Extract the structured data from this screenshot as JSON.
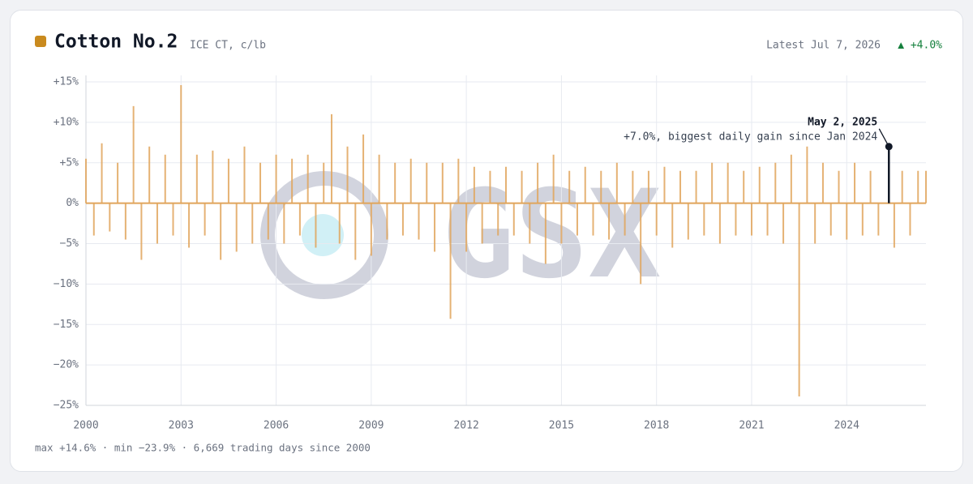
{
  "chart_data": {
    "type": "spike",
    "title": "Cotton No.2",
    "subtitle": "ICE CT, c/lb",
    "latest": "Latest Jul 7, 2026",
    "latest_change": "▲ +4.0%",
    "footer": "max +14.6% · min −23.9% · 6,669 trading days since 2000",
    "watermark": "GSX",
    "color": "#e0a55c",
    "title_marker_color": "#c98a1e",
    "x": [
      2000,
      2000.25,
      2000.5,
      2000.75,
      2001,
      2001.25,
      2001.5,
      2001.75,
      2002,
      2002.25,
      2002.5,
      2002.75,
      2003,
      2003.25,
      2003.5,
      2003.75,
      2004,
      2004.25,
      2004.5,
      2004.75,
      2005,
      2005.25,
      2005.5,
      2005.75,
      2006,
      2006.25,
      2006.5,
      2006.75,
      2007,
      2007.25,
      2007.5,
      2007.75,
      2008,
      2008.25,
      2008.5,
      2008.75,
      2009,
      2009.25,
      2009.5,
      2009.75,
      2010,
      2010.25,
      2010.5,
      2010.75,
      2011,
      2011.25,
      2011.5,
      2011.75,
      2012,
      2012.25,
      2012.5,
      2012.75,
      2013,
      2013.25,
      2013.5,
      2013.75,
      2014,
      2014.25,
      2014.5,
      2014.75,
      2015,
      2015.25,
      2015.5,
      2015.75,
      2016,
      2016.25,
      2016.5,
      2016.75,
      2017,
      2017.25,
      2017.5,
      2017.75,
      2018,
      2018.25,
      2018.5,
      2018.75,
      2019,
      2019.25,
      2019.5,
      2019.75,
      2020,
      2020.25,
      2020.5,
      2020.75,
      2021,
      2021.25,
      2021.5,
      2021.75,
      2022,
      2022.25,
      2022.5,
      2022.75,
      2023,
      2023.25,
      2023.5,
      2023.75,
      2024,
      2024.25,
      2024.5,
      2024.75,
      2025,
      2025.33,
      2025.5,
      2025.75,
      2026,
      2026.25,
      2026.5
    ],
    "values": [
      5.5,
      -4,
      7.4,
      -3.5,
      5,
      -4.5,
      12,
      -7,
      7,
      -5,
      6,
      -4,
      14.6,
      -5.5,
      6,
      -4,
      6.5,
      -7,
      5.5,
      -6,
      7,
      -5,
      5,
      -4.5,
      6,
      -5,
      5.5,
      -4,
      6,
      -5.5,
      5,
      11,
      -5,
      7,
      -7,
      8.5,
      -6.5,
      6,
      -4.5,
      5,
      -4,
      5.5,
      -4.5,
      5,
      -6,
      5,
      -14.3,
      5.5,
      -6,
      4.5,
      -5,
      4,
      -4,
      4.5,
      -4,
      4,
      -5,
      5,
      -7.5,
      6,
      -5,
      4,
      -4,
      4.5,
      -4,
      4,
      -4.5,
      5,
      -4,
      4,
      -10,
      4,
      -4,
      4.5,
      -5.5,
      4,
      -4.5,
      4,
      -4,
      5,
      -5,
      5,
      -4,
      4,
      -4,
      4.5,
      -4,
      5,
      -5,
      6,
      -23.9,
      7,
      -5,
      5,
      -4,
      4,
      -4.5,
      5,
      -4,
      4,
      -4,
      7.0,
      -5.5,
      4,
      -4,
      4,
      4.0
    ],
    "annotation": {
      "index": 101,
      "date": "May 2, 2025",
      "text": "+7.0%,  biggest daily gain since Jan 2024"
    },
    "xlim": [
      2000,
      2026.5
    ],
    "xticks": [
      2000,
      2003,
      2006,
      2009,
      2012,
      2015,
      2018,
      2021,
      2024
    ],
    "ylim": [
      -25,
      15
    ],
    "yticks": [
      {
        "value": 15,
        "label": "+15%"
      },
      {
        "value": 10,
        "label": "+10%"
      },
      {
        "value": 5,
        "label": "+5%"
      },
      {
        "value": 0,
        "label": "0%"
      },
      {
        "value": -5,
        "label": "−5%"
      },
      {
        "value": -10,
        "label": "−10%"
      },
      {
        "value": -15,
        "label": "−15%"
      },
      {
        "value": -20,
        "label": "−20%"
      },
      {
        "value": -25,
        "label": "−25%"
      }
    ],
    "grid": true
  }
}
